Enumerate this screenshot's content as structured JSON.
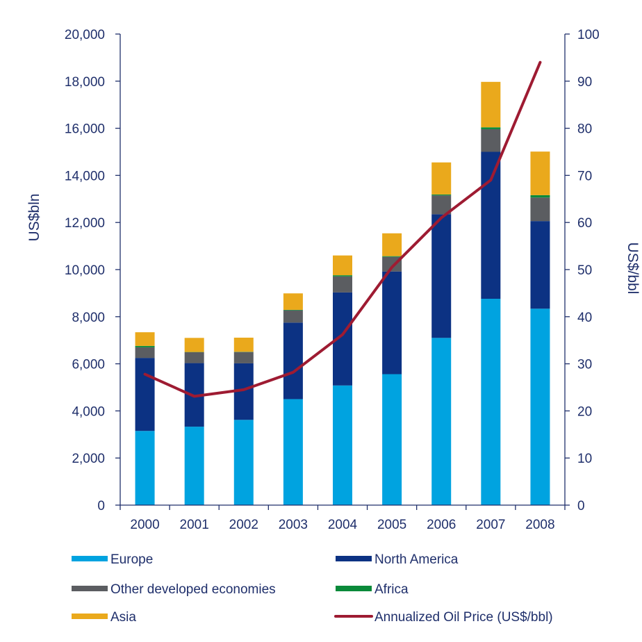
{
  "chart_data": {
    "type": "bar",
    "stacked": true,
    "categories": [
      "2000",
      "2001",
      "2002",
      "2003",
      "2004",
      "2005",
      "2006",
      "2007",
      "2008"
    ],
    "series": [
      {
        "name": "Europe",
        "color": "#00a3e0",
        "values": [
          3150,
          3330,
          3620,
          4500,
          5080,
          5560,
          7100,
          8760,
          8340
        ]
      },
      {
        "name": "North America",
        "color": "#0c3283",
        "values": [
          3100,
          2700,
          2400,
          3250,
          3950,
          4360,
          5250,
          6240,
          3720
        ]
      },
      {
        "name": "Other developed economies",
        "color": "#5b5d61",
        "values": [
          450,
          460,
          480,
          520,
          680,
          620,
          800,
          960,
          1000
        ]
      },
      {
        "name": "Africa",
        "color": "#0a8a3a",
        "values": [
          60,
          10,
          10,
          20,
          50,
          30,
          40,
          80,
          100
        ]
      },
      {
        "name": "Asia",
        "color": "#eaa91c",
        "values": [
          580,
          600,
          600,
          700,
          840,
          970,
          1360,
          1930,
          1850
        ]
      }
    ],
    "line_series": {
      "name": "Annualized Oil Price (US$/bbl)",
      "color": "#9e1b32",
      "axis": "right",
      "values": [
        27.8,
        23.1,
        24.5,
        28.2,
        36.2,
        50.5,
        61.0,
        69.0,
        94.0
      ]
    },
    "ylabel": "US$bln",
    "ylabel_right": "US$/bbl",
    "ylim": [
      0,
      20000
    ],
    "ylim_right": [
      0,
      100
    ],
    "yticks": [
      "0",
      "2,000",
      "4,000",
      "6,000",
      "8,000",
      "10,000",
      "12,000",
      "14,000",
      "16,000",
      "18,000",
      "20,000"
    ],
    "yticks_right": [
      "0",
      "10",
      "20",
      "30",
      "40",
      "50",
      "60",
      "70",
      "80",
      "90",
      "100"
    ],
    "legend": [
      {
        "label": "Europe",
        "color": "#00a3e0",
        "kind": "bar"
      },
      {
        "label": "North America",
        "color": "#0c3283",
        "kind": "bar"
      },
      {
        "label": "Other developed economies",
        "color": "#5b5d61",
        "kind": "bar"
      },
      {
        "label": "Africa",
        "color": "#0a8a3a",
        "kind": "bar"
      },
      {
        "label": "Asia",
        "color": "#eaa91c",
        "kind": "bar"
      },
      {
        "label": "Annualized Oil Price (US$/bbl)",
        "color": "#9e1b32",
        "kind": "line"
      }
    ],
    "legend_position": "bottom",
    "grid": false,
    "axis_color": "#1f2f6b"
  }
}
